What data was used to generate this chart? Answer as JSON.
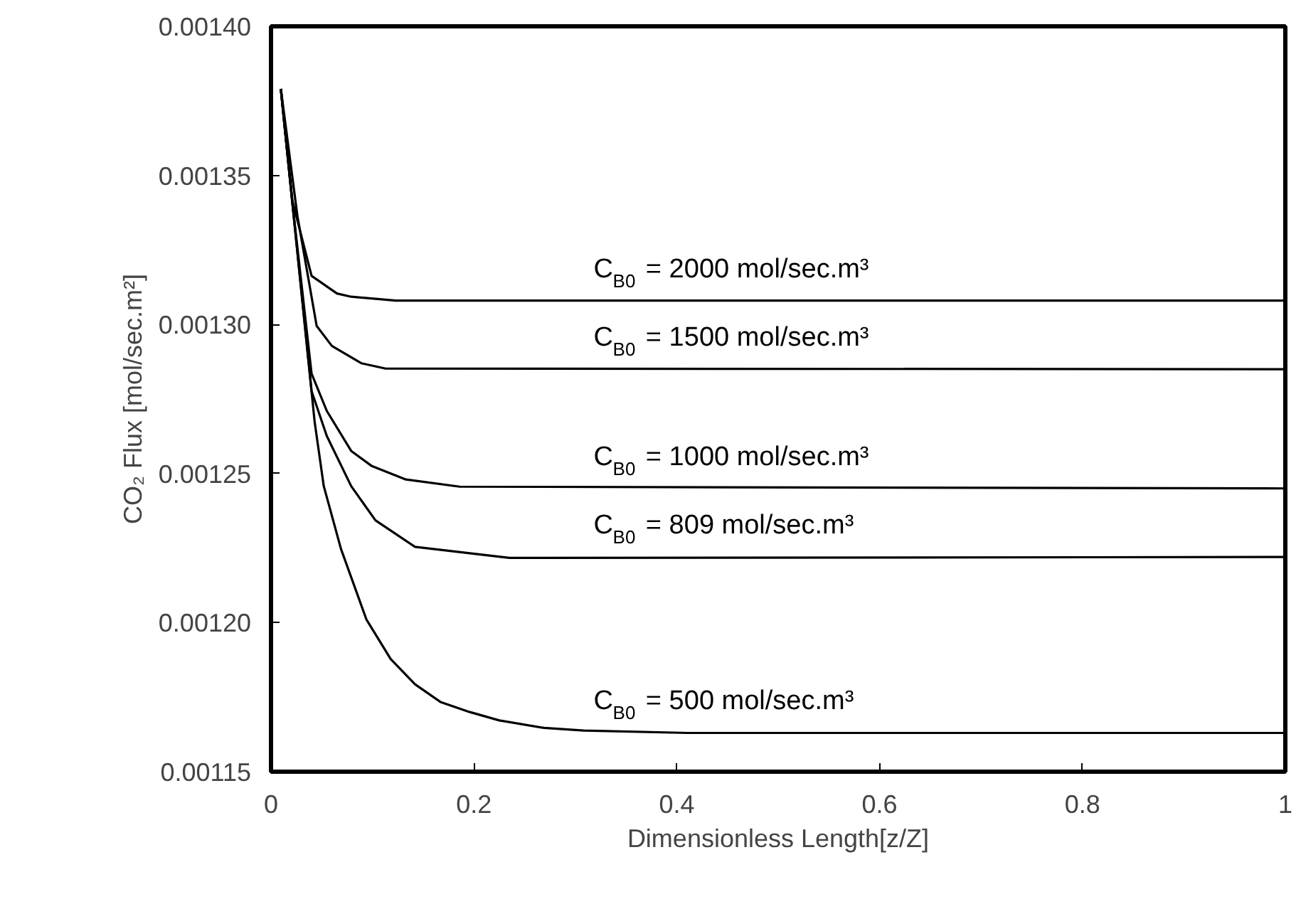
{
  "chart_data": {
    "type": "line",
    "xlabel": "Dimensionless Length[z/Z]",
    "ylabel": "CO₂ Flux [mol/sec.m²]",
    "xlim": [
      0,
      1
    ],
    "ylim": [
      0.00115,
      0.0014
    ],
    "xticks": [
      0,
      0.2,
      0.4,
      0.6,
      0.8,
      1
    ],
    "yticks": [
      {
        "value": 0.00115,
        "label": "0.00115"
      },
      {
        "value": 0.0012,
        "label": "0.00120"
      },
      {
        "value": 0.00125,
        "label": "0.00125"
      },
      {
        "value": 0.0013,
        "label": "0.00130"
      },
      {
        "value": 0.00135,
        "label": "0.00135"
      },
      {
        "value": 0.0014,
        "label": "0.00140"
      }
    ],
    "grid": false,
    "marker": "none",
    "line_style": "solid",
    "series": [
      {
        "name": "C$_{B0}$ = 2000 mol/sec.m³",
        "color": "#000000",
        "x": [
          0.0097,
          0.021,
          0.04,
          0.065,
          0.079,
          0.123,
          1
        ],
        "values": [
          0.001379,
          0.0013416,
          0.0013163,
          0.0013104,
          0.0013093,
          0.001308,
          0.001308
        ]
      },
      {
        "name": "C$_{B0}$ = 1500 mol/sec.m³",
        "color": "#000000",
        "x": [
          0.0097,
          0.026,
          0.045,
          0.06,
          0.089,
          0.113,
          1
        ],
        "values": [
          0.001379,
          0.0013365,
          0.0012995,
          0.0012928,
          0.001287,
          0.0012852,
          0.001285
        ]
      },
      {
        "name": "C$_{B0}$ = 1000 mol/sec.m³",
        "color": "#000000",
        "x": [
          0.0097,
          0.021,
          0.04,
          0.055,
          0.079,
          0.099,
          0.133,
          0.186,
          1
        ],
        "values": [
          0.001379,
          0.001341,
          0.0012835,
          0.001271,
          0.0012576,
          0.0012526,
          0.001248,
          0.0012456,
          0.001245
        ]
      },
      {
        "name": "C$_{B0}$ = 809 mol/sec.m³",
        "color": "#000000",
        "x": [
          0.0097,
          0.021,
          0.04,
          0.055,
          0.079,
          0.103,
          0.142,
          0.235,
          1
        ],
        "values": [
          0.001379,
          0.001341,
          0.0012776,
          0.0012626,
          0.0012458,
          0.0012343,
          0.0012254,
          0.0012217,
          0.001222
        ]
      },
      {
        "name": "C$_{B0}$ = 500 mol/sec.m³",
        "color": "#000000",
        "x": [
          0.0097,
          0.021,
          0.043,
          0.052,
          0.069,
          0.094,
          0.118,
          0.142,
          0.167,
          0.196,
          0.225,
          0.269,
          0.308,
          0.41,
          1
        ],
        "values": [
          0.001379,
          0.001341,
          0.0012674,
          0.0012458,
          0.0012247,
          0.0012011,
          0.0011878,
          0.0011793,
          0.0011734,
          0.00117,
          0.0011672,
          0.0011647,
          0.0011638,
          0.001163,
          0.001163
        ]
      }
    ]
  }
}
